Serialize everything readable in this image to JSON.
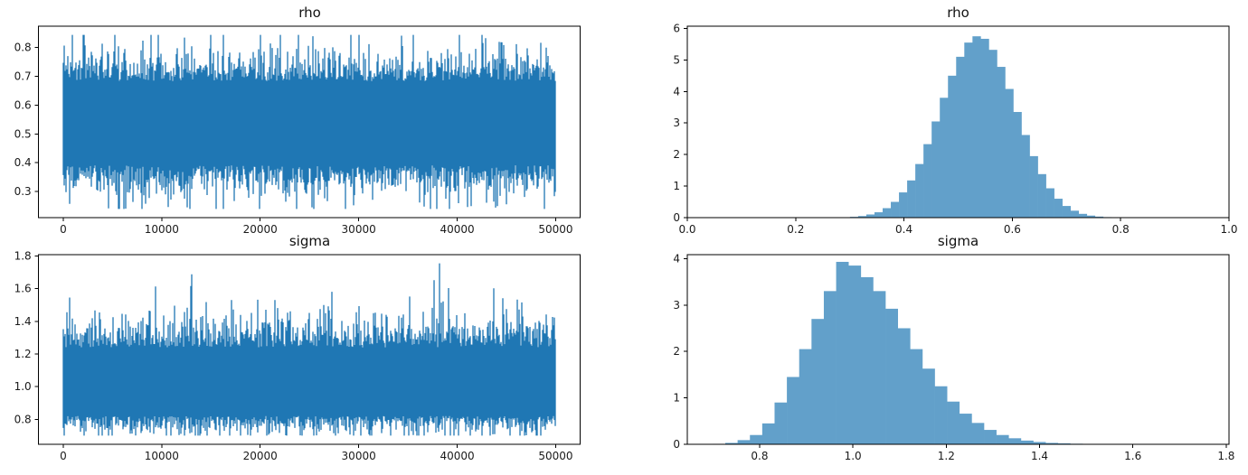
{
  "figure": {
    "background": "#ffffff",
    "trace_line_color": "#1f77b4",
    "hist_fill_color": "#62a0ca",
    "axis_color": "#000000",
    "tick_label_color": "#1a1a1a"
  },
  "chart_data": [
    {
      "id": "rho-trace",
      "type": "line",
      "title": "rho",
      "xlabel": "",
      "ylabel": "",
      "xlim": [
        -2500,
        52500
      ],
      "ylim": [
        0.21,
        0.873
      ],
      "xticks": [
        0,
        10000,
        20000,
        30000,
        40000,
        50000
      ],
      "xtick_labels": [
        "0",
        "10000",
        "20000",
        "30000",
        "40000",
        "50000"
      ],
      "yticks": [
        0.3,
        0.4,
        0.5,
        0.6,
        0.7,
        0.8
      ],
      "ytick_labels": [
        "0.3",
        "0.4",
        "0.5",
        "0.6",
        "0.7",
        "0.8"
      ],
      "grid": false,
      "series": {
        "name": "rho",
        "n_samples": 50000,
        "x_min": 0,
        "x_max": 50000,
        "mean": 0.537,
        "std": 0.0695,
        "sample_min": 0.24,
        "sample_max": 0.843,
        "peak_x": 8900,
        "trough_x": 25400,
        "upper_skew": 1.0,
        "lower_skew": 1.0,
        "seed": 11
      }
    },
    {
      "id": "rho-hist",
      "type": "bar",
      "title": "rho",
      "xlabel": "",
      "ylabel": "",
      "xlim": [
        0.0,
        1.0
      ],
      "ylim": [
        0,
        6.07
      ],
      "xticks": [
        0.0,
        0.2,
        0.4,
        0.6,
        0.8,
        1.0
      ],
      "xtick_labels": [
        "0.0",
        "0.2",
        "0.4",
        "0.6",
        "0.8",
        "1.0"
      ],
      "yticks": [
        0,
        1,
        2,
        3,
        4,
        5,
        6
      ],
      "ytick_labels": [
        "0",
        "1",
        "2",
        "3",
        "4",
        "5",
        "6"
      ],
      "grid": false,
      "bins": 40,
      "bin_start": 0.24,
      "bin_width": 0.015075,
      "densities": [
        0.001,
        0.002,
        0.005,
        0.012,
        0.025,
        0.05,
        0.1,
        0.17,
        0.3,
        0.5,
        0.8,
        1.18,
        1.7,
        2.33,
        3.05,
        3.8,
        4.5,
        5.1,
        5.55,
        5.75,
        5.67,
        5.32,
        4.78,
        4.08,
        3.35,
        2.62,
        1.95,
        1.38,
        0.93,
        0.6,
        0.37,
        0.22,
        0.12,
        0.065,
        0.033,
        0.016,
        0.008,
        0.004,
        0.002,
        0.001
      ]
    },
    {
      "id": "sigma-trace",
      "type": "line",
      "title": "sigma",
      "xlabel": "",
      "ylabel": "",
      "xlim": [
        -2500,
        52500
      ],
      "ylim": [
        0.647,
        1.808
      ],
      "xticks": [
        0,
        10000,
        20000,
        30000,
        40000,
        50000
      ],
      "xtick_labels": [
        "0",
        "10000",
        "20000",
        "30000",
        "40000",
        "50000"
      ],
      "yticks": [
        0.8,
        1.0,
        1.2,
        1.4,
        1.6,
        1.8
      ],
      "ytick_labels": [
        "0.8",
        "1.0",
        "1.2",
        "1.4",
        "1.6",
        "1.8"
      ],
      "grid": false,
      "series": {
        "name": "sigma",
        "n_samples": 50000,
        "x_min": 0,
        "x_max": 50000,
        "mean": 1.03,
        "std": 0.1,
        "sample_min": 0.7,
        "sample_max": 1.755,
        "peak_x": 38200,
        "trough_x": 5000,
        "upper_skew": 1.35,
        "lower_skew": 0.72,
        "seed": 29
      }
    },
    {
      "id": "sigma-hist",
      "type": "bar",
      "title": "sigma",
      "xlabel": "",
      "ylabel": "",
      "xlim": [
        0.645,
        1.806
      ],
      "ylim": [
        0,
        4.085
      ],
      "xticks": [
        0.8,
        1.0,
        1.2,
        1.4,
        1.6,
        1.8
      ],
      "xtick_labels": [
        "0.8",
        "1.0",
        "1.2",
        "1.4",
        "1.6",
        "1.8"
      ],
      "yticks": [
        0,
        1,
        2,
        3,
        4
      ],
      "ytick_labels": [
        "0",
        "1",
        "2",
        "3",
        "4"
      ],
      "grid": false,
      "bins": 40,
      "bin_start": 0.7,
      "bin_width": 0.0264,
      "densities": [
        0.01,
        0.03,
        0.09,
        0.2,
        0.45,
        0.9,
        1.45,
        2.05,
        2.7,
        3.3,
        3.93,
        3.85,
        3.6,
        3.3,
        2.92,
        2.5,
        2.05,
        1.63,
        1.25,
        0.92,
        0.66,
        0.46,
        0.31,
        0.2,
        0.13,
        0.08,
        0.05,
        0.03,
        0.02,
        0.012,
        0.008,
        0.005,
        0.004,
        0.003,
        0.003,
        0.002,
        0.002,
        0.002,
        0.002,
        0.003
      ]
    }
  ]
}
